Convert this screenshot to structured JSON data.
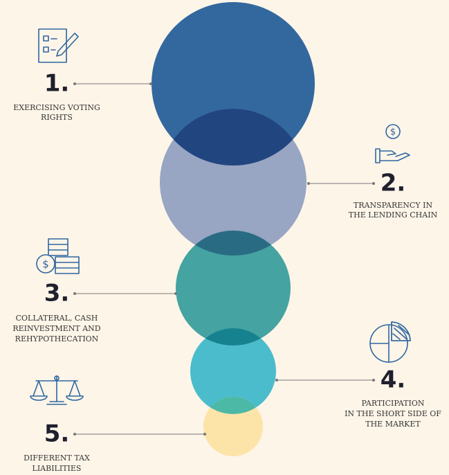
{
  "items": [
    {
      "number": "1.",
      "label": [
        "EXERCISING VOTING",
        "RIGHTS"
      ]
    },
    {
      "number": "2.",
      "label": [
        "TRANSPARENCY IN",
        "THE LENDING CHAIN"
      ]
    },
    {
      "number": "3.",
      "label": [
        "COLLATERAL, CASH",
        "REINVESTMENT AND",
        "REHYPOTHECATION"
      ]
    },
    {
      "number": "4.",
      "label": [
        "PARTICIPATION",
        "IN THE SHORT SIDE OF",
        "THE MARKET"
      ]
    },
    {
      "number": "5.",
      "label": [
        "DIFFERENT TAX",
        "LIABILITIES"
      ]
    }
  ]
}
